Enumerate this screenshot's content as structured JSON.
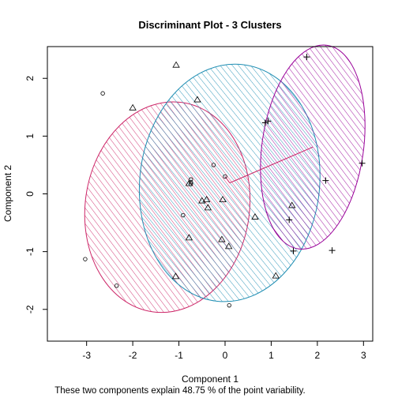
{
  "chart_data": {
    "type": "scatter",
    "title": "Discriminant Plot - 3 Clusters",
    "xlabel": "Component 1",
    "ylabel": "Component 2",
    "subtitle": "These two components explain 48.75 % of the point variability.",
    "xlim": [
      -3.85,
      3.2
    ],
    "ylim": [
      -2.55,
      2.55
    ],
    "xticks": [
      -3,
      -2,
      -1,
      0,
      1,
      2,
      3
    ],
    "yticks": [
      -2,
      -1,
      0,
      1,
      2
    ],
    "grid": false,
    "clusters": [
      {
        "marker": "circle",
        "color": "#cd2668",
        "ellipse": {
          "center": [
            -1.25,
            -0.23
          ],
          "semi_axes": [
            1.78,
            1.83
          ],
          "rotation_deg": 8
        },
        "points": [
          [
            -2.65,
            1.74
          ],
          [
            -3.03,
            -1.13
          ],
          [
            -2.35,
            -1.59
          ],
          [
            -0.74,
            0.25
          ],
          [
            -0.25,
            0.5
          ],
          [
            -0.74,
            0.2
          ],
          [
            -0.74,
            0.17
          ],
          [
            -0.91,
            -0.37
          ],
          [
            0.0,
            0.3
          ],
          [
            0.09,
            -1.93
          ]
        ]
      },
      {
        "marker": "triangle",
        "color": "#1f8eb3",
        "ellipse": {
          "center": [
            0.1,
            0.19
          ],
          "semi_axes": [
            1.95,
            2.06
          ],
          "rotation_deg": 6
        },
        "points": [
          [
            -1.06,
            2.23
          ],
          [
            -2.0,
            1.49
          ],
          [
            -0.6,
            1.63
          ],
          [
            -0.78,
            0.18
          ],
          [
            -0.5,
            -0.12
          ],
          [
            -0.37,
            -0.24
          ],
          [
            -0.05,
            -0.1
          ],
          [
            -0.4,
            -0.1
          ],
          [
            -0.78,
            -0.76
          ],
          [
            0.65,
            -0.4
          ],
          [
            -0.07,
            -0.79
          ],
          [
            0.08,
            -0.91
          ],
          [
            -1.07,
            -1.43
          ],
          [
            1.1,
            -1.42
          ],
          [
            1.45,
            -0.2
          ]
        ]
      },
      {
        "marker": "plus",
        "color": "#990099",
        "ellipse": {
          "center": [
            1.9,
            0.81
          ],
          "semi_axes": [
            1.1,
            1.78
          ],
          "rotation_deg": 8
        },
        "points": [
          [
            1.77,
            2.37
          ],
          [
            0.87,
            1.23
          ],
          [
            0.93,
            1.26
          ],
          [
            2.97,
            0.53
          ],
          [
            2.18,
            0.23
          ],
          [
            1.39,
            -0.45
          ],
          [
            1.48,
            -0.99
          ],
          [
            2.32,
            -0.98
          ]
        ]
      }
    ],
    "connections": [
      [
        [
          0.0,
          0.3
        ],
        [
          0.1,
          0.19
        ]
      ],
      [
        [
          0.1,
          0.19
        ],
        [
          1.9,
          0.81
        ]
      ]
    ]
  }
}
